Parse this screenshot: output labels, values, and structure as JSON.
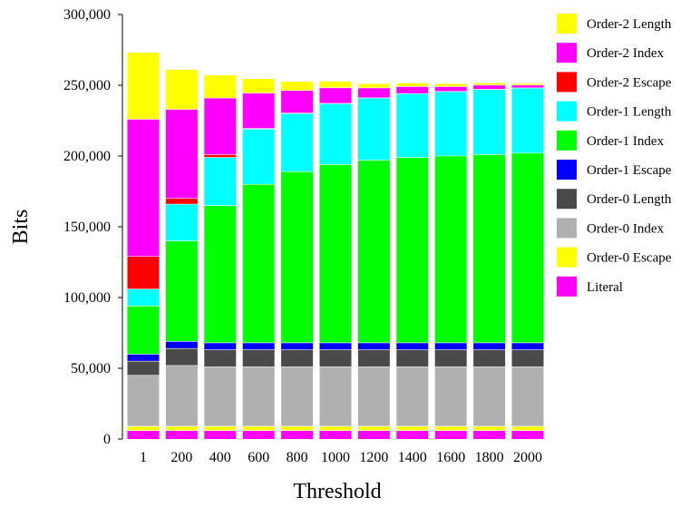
{
  "chart_data": {
    "type": "bar",
    "stacked": true,
    "xlabel": "Threshold",
    "ylabel": "Bits",
    "ylim": [
      0,
      300000
    ],
    "yticks": [
      0,
      50000,
      100000,
      150000,
      200000,
      250000,
      300000
    ],
    "ytick_labels": [
      "0",
      "50,000",
      "100,000",
      "150,000",
      "200,000",
      "250,000",
      "300,000"
    ],
    "categories": [
      "1",
      "200",
      "400",
      "600",
      "800",
      "1000",
      "1200",
      "1400",
      "1600",
      "1800",
      "2000"
    ],
    "legend_position": "right",
    "series": [
      {
        "name": "Literal",
        "color": "#ff00ff",
        "values": [
          6000,
          6000,
          6000,
          6000,
          6000,
          6000,
          6000,
          6000,
          6000,
          6000,
          6000
        ]
      },
      {
        "name": "Order-0 Escape",
        "color": "#ffff00",
        "values": [
          3000,
          3000,
          3000,
          3000,
          3000,
          3000,
          3000,
          3000,
          3000,
          3000,
          3000
        ]
      },
      {
        "name": "Order-0 Index",
        "color": "#b0b0b0",
        "values": [
          36000,
          43000,
          42000,
          42000,
          42000,
          42000,
          42000,
          42000,
          42000,
          42000,
          42000
        ]
      },
      {
        "name": "Order-0 Length",
        "color": "#4a4a4a",
        "values": [
          10000,
          12000,
          12000,
          12000,
          12000,
          12000,
          12000,
          12000,
          12000,
          12000,
          12000
        ]
      },
      {
        "name": "Order-1 Escape",
        "color": "#0000ff",
        "values": [
          5000,
          5000,
          5000,
          5000,
          5000,
          5000,
          5000,
          5000,
          5000,
          5000,
          5000
        ]
      },
      {
        "name": "Order-1 Index",
        "color": "#00ff00",
        "values": [
          34000,
          71000,
          97000,
          112000,
          121000,
          126000,
          129000,
          131000,
          132000,
          133000,
          134000
        ]
      },
      {
        "name": "Order-1 Length",
        "color": "#00ffff",
        "values": [
          12000,
          26000,
          34000,
          39000,
          41000,
          43000,
          44000,
          45000,
          45500,
          46000,
          46000
        ]
      },
      {
        "name": "Order-2 Escape",
        "color": "#ff0000",
        "values": [
          23000,
          4000,
          2000,
          500,
          300,
          200,
          100,
          100,
          100,
          100,
          100
        ]
      },
      {
        "name": "Order-2 Index",
        "color": "#ff00ff",
        "values": [
          97000,
          63000,
          40000,
          25000,
          16000,
          11000,
          7000,
          5000,
          3500,
          3000,
          2000
        ]
      },
      {
        "name": "Order-2 Length",
        "color": "#ffff00",
        "values": [
          47000,
          28000,
          16000,
          10000,
          6200,
          4500,
          2900,
          2400,
          1900,
          1400,
          1000
        ]
      }
    ]
  }
}
